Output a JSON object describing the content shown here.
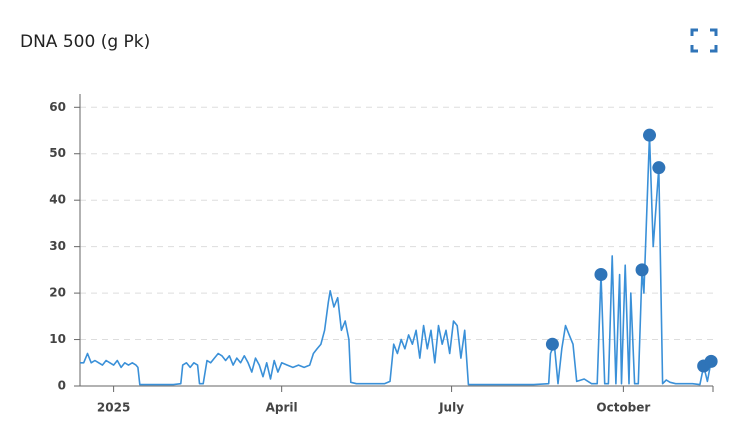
{
  "chart_data": {
    "type": "line",
    "title": "DNA 500 (g Pk)",
    "xlim": [
      -18,
      321
    ],
    "xticks": [
      {
        "value": 0,
        "label": "2025"
      },
      {
        "value": 90,
        "label": "April"
      },
      {
        "value": 181,
        "label": "July"
      },
      {
        "value": 273,
        "label": "October"
      }
    ],
    "ylim": [
      0,
      62
    ],
    "yticks": [
      0,
      10,
      20,
      30,
      40,
      50,
      60
    ],
    "grid": true,
    "series": [
      {
        "color": "#3a90d8",
        "mode": "line",
        "x": [
          -18,
          -16,
          -14,
          -12,
          -10,
          -8,
          -6,
          -4,
          -2,
          0,
          2,
          4,
          6,
          8,
          10,
          12,
          13,
          14,
          20,
          26,
          32,
          36,
          37,
          39,
          41,
          43,
          45,
          46,
          48,
          50,
          52,
          54,
          56,
          58,
          60,
          62,
          64,
          66,
          68,
          70,
          72,
          74,
          76,
          78,
          80,
          82,
          84,
          86,
          88,
          90,
          93,
          96,
          99,
          102,
          105,
          107,
          109,
          111,
          113,
          115,
          116,
          118,
          120,
          122,
          124,
          126,
          127,
          130,
          135,
          140,
          145,
          148,
          150,
          152,
          154,
          156,
          158,
          160,
          162,
          164,
          166,
          168,
          170,
          172,
          174,
          176,
          178,
          180,
          182,
          184,
          186,
          188,
          190,
          195,
          205,
          215,
          225,
          233,
          234,
          236,
          238,
          240,
          242,
          244,
          246,
          248,
          252,
          256,
          259,
          261,
          263,
          265,
          267,
          269,
          271,
          272,
          274,
          276,
          277,
          279,
          281,
          283,
          284,
          287,
          289,
          292,
          294,
          296,
          298,
          301,
          305,
          310,
          314,
          316,
          318,
          320
        ],
        "values": [
          5,
          5,
          7,
          5,
          5.5,
          5,
          4.5,
          5.5,
          5,
          4.5,
          5.5,
          4,
          5,
          4.5,
          5,
          4.5,
          4,
          0.3,
          0.3,
          0.3,
          0.3,
          0.5,
          4.5,
          5,
          4,
          5,
          4.5,
          0.5,
          0.5,
          5.5,
          5,
          6,
          7,
          6.5,
          5.5,
          6.5,
          4.5,
          6,
          5,
          6.5,
          5,
          3,
          6,
          4.5,
          2,
          5,
          1.5,
          5.5,
          3,
          5,
          4.5,
          4,
          4.5,
          4,
          4.5,
          7,
          8,
          9,
          12,
          18,
          20.5,
          17,
          19,
          12,
          14,
          10,
          0.8,
          0.5,
          0.5,
          0.5,
          0.5,
          1,
          9,
          7,
          10,
          8,
          11,
          9,
          12,
          6,
          13,
          8,
          12,
          5,
          13,
          9,
          12,
          7,
          14,
          13,
          6,
          12,
          0.3,
          0.3,
          0.3,
          0.3,
          0.3,
          0.5,
          7,
          9,
          0.5,
          8,
          13,
          11,
          9,
          1,
          1.5,
          0.5,
          0.5,
          24,
          0.5,
          0.5,
          28,
          0.5,
          24,
          0.5,
          26,
          0.5,
          20,
          0.5,
          0.5,
          25,
          20,
          54,
          30,
          47,
          0.5,
          1.3,
          0.8,
          0.5,
          0.5,
          0.5,
          0.3,
          4.3,
          1,
          5.3
        ]
      },
      {
        "color": "#2f74b8",
        "mode": "markers",
        "x": [
          235,
          261,
          283,
          287,
          292,
          316,
          320
        ],
        "values": [
          9,
          24,
          25,
          54,
          47,
          4.3,
          5.3
        ]
      }
    ]
  }
}
